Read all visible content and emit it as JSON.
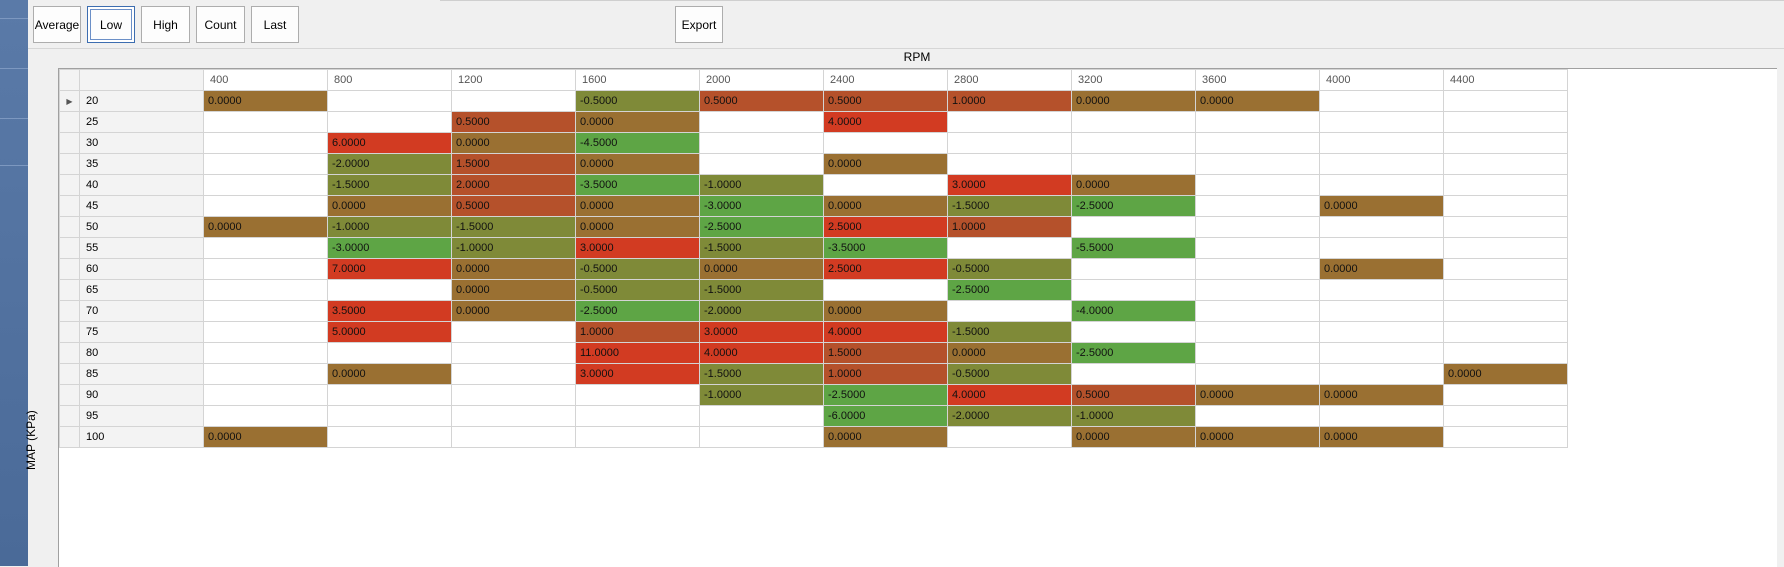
{
  "toolbar": {
    "buttons": [
      {
        "label": "Average",
        "active": false
      },
      {
        "label": "Low",
        "active": true
      },
      {
        "label": "High",
        "active": false
      },
      {
        "label": "Count",
        "active": false
      },
      {
        "label": "Last",
        "active": false
      }
    ],
    "export_label": "Export"
  },
  "axis": {
    "x_title": "RPM",
    "y_title": "MAP (KPa)"
  },
  "grid": {
    "columns": [
      "400",
      "800",
      "1200",
      "1600",
      "2000",
      "2400",
      "2800",
      "3200",
      "3600",
      "4000",
      "4400"
    ],
    "rows": [
      {
        "label": "20",
        "cells": [
          "0.0000",
          "",
          "",
          "-0.5000",
          "0.5000",
          "0.5000",
          "1.0000",
          "0.0000",
          "0.0000",
          "",
          ""
        ]
      },
      {
        "label": "25",
        "cells": [
          "",
          "",
          "0.5000",
          "0.0000",
          "",
          "4.0000",
          "",
          "",
          "",
          "",
          ""
        ]
      },
      {
        "label": "30",
        "cells": [
          "",
          "6.0000",
          "0.0000",
          "-4.5000",
          "",
          "",
          "",
          "",
          "",
          "",
          ""
        ]
      },
      {
        "label": "35",
        "cells": [
          "",
          "-2.0000",
          "1.5000",
          "0.0000",
          "",
          "0.0000",
          "",
          "",
          "",
          "",
          ""
        ]
      },
      {
        "label": "40",
        "cells": [
          "",
          "-1.5000",
          "2.0000",
          "-3.5000",
          "-1.0000",
          "",
          "3.0000",
          "0.0000",
          "",
          "",
          ""
        ]
      },
      {
        "label": "45",
        "cells": [
          "",
          "0.0000",
          "0.5000",
          "0.0000",
          "-3.0000",
          "0.0000",
          "-1.5000",
          "-2.5000",
          "",
          "0.0000",
          ""
        ]
      },
      {
        "label": "50",
        "cells": [
          "0.0000",
          "-1.0000",
          "-1.5000",
          "0.0000",
          "-2.5000",
          "2.5000",
          "1.0000",
          "",
          "",
          "",
          ""
        ]
      },
      {
        "label": "55",
        "cells": [
          "",
          "-3.0000",
          "-1.0000",
          "3.0000",
          "-1.5000",
          "-3.5000",
          "",
          "-5.5000",
          "",
          "",
          ""
        ]
      },
      {
        "label": "60",
        "cells": [
          "",
          "7.0000",
          "0.0000",
          "-0.5000",
          "0.0000",
          "2.5000",
          "-0.5000",
          "",
          "",
          "0.0000",
          ""
        ]
      },
      {
        "label": "65",
        "cells": [
          "",
          "",
          "0.0000",
          "-0.5000",
          "-1.5000",
          "",
          "-2.5000",
          "",
          "",
          "",
          ""
        ]
      },
      {
        "label": "70",
        "cells": [
          "",
          "3.5000",
          "0.0000",
          "-2.5000",
          "-2.0000",
          "0.0000",
          "",
          "-4.0000",
          "",
          "",
          ""
        ]
      },
      {
        "label": "75",
        "cells": [
          "",
          "5.0000",
          "",
          "1.0000",
          "3.0000",
          "4.0000",
          "-1.5000",
          "",
          "",
          "",
          ""
        ]
      },
      {
        "label": "80",
        "cells": [
          "",
          "",
          "",
          "11.0000",
          "4.0000",
          "1.5000",
          "0.0000",
          "-2.5000",
          "",
          "",
          ""
        ]
      },
      {
        "label": "85",
        "cells": [
          "",
          "0.0000",
          "",
          "3.0000",
          "-1.5000",
          "1.0000",
          "-0.5000",
          "",
          "",
          "",
          "0.0000"
        ]
      },
      {
        "label": "90",
        "cells": [
          "",
          "",
          "",
          "",
          "-1.0000",
          "-2.5000",
          "4.0000",
          "0.5000",
          "0.0000",
          "0.0000",
          ""
        ]
      },
      {
        "label": "95",
        "cells": [
          "",
          "",
          "",
          "",
          "",
          "-6.0000",
          "-2.0000",
          "-1.0000",
          "",
          "",
          ""
        ]
      },
      {
        "label": "100",
        "cells": [
          "0.0000",
          "",
          "",
          "",
          "",
          "0.0000",
          "",
          "0.0000",
          "0.0000",
          "0.0000",
          ""
        ]
      }
    ]
  },
  "colors": {
    "very_hot": "#d23b22",
    "hot": "#b5512b",
    "neutral": "#9a7032",
    "cool": "#7f8a38",
    "cold": "#5ea545",
    "row_selector_arrow": "triangle-right-icon"
  }
}
